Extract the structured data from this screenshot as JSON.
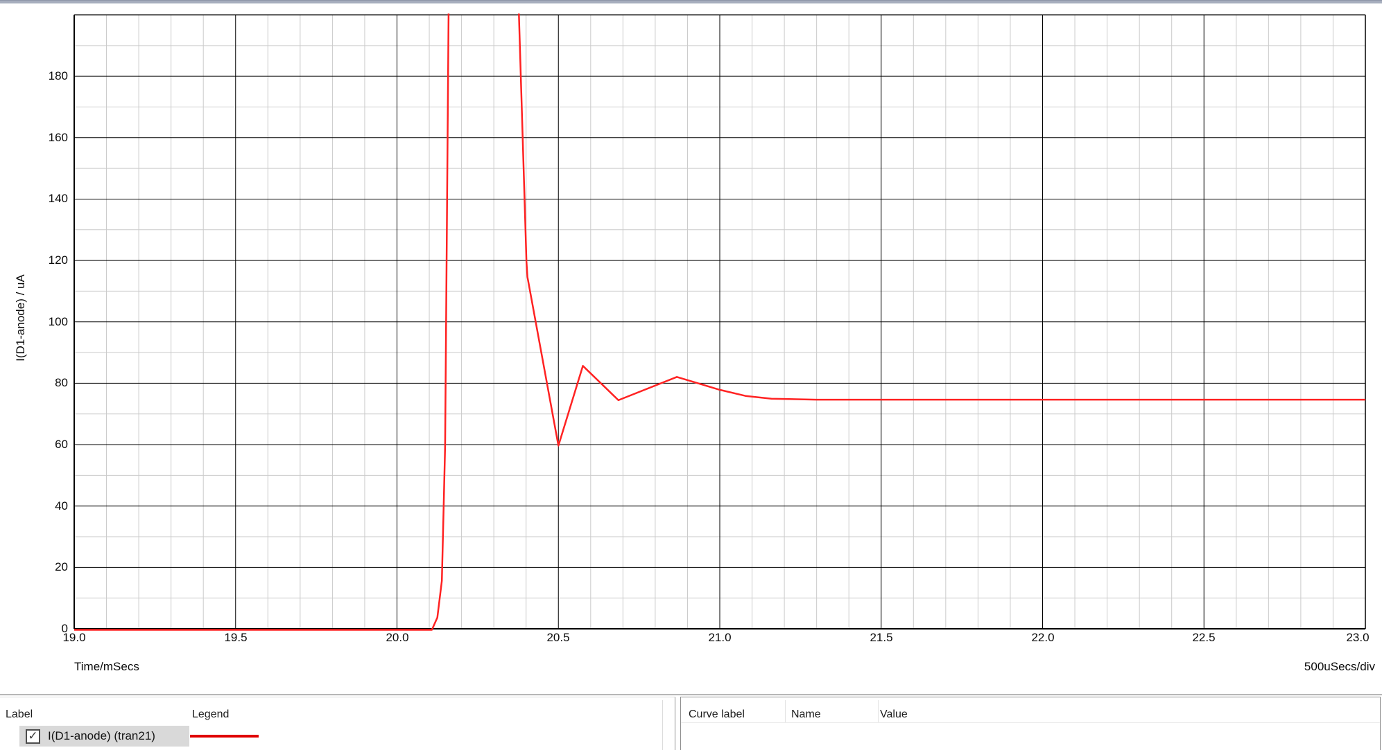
{
  "chart_data": {
    "type": "line",
    "xlabel": "Time/mSecs",
    "x_scale_note": "500uSecs/div",
    "ylabel": "I(D1-anode) / uA",
    "xlim": [
      19.0,
      23.0
    ],
    "ylim": [
      0,
      200
    ],
    "x_major_step": 0.5,
    "x_minor_step": 0.1,
    "y_major_step": 20,
    "y_minor_step": 10,
    "grid": true,
    "x_tick_labels": [
      "19.0",
      "19.5",
      "20.0",
      "20.5",
      "21.0",
      "21.5",
      "22.0",
      "22.5",
      "23.0"
    ],
    "y_tick_labels": [
      "0",
      "20",
      "40",
      "60",
      "80",
      "100",
      "120",
      "140",
      "160",
      "180"
    ],
    "series": [
      {
        "name": "I(D1-anode) (tran21)",
        "color": "#ff2222",
        "points": [
          [
            19.0,
            0
          ],
          [
            20.108,
            0
          ],
          [
            20.125,
            4
          ],
          [
            20.139,
            16
          ],
          [
            20.1445,
            40
          ],
          [
            20.149,
            60
          ],
          [
            20.16,
            203
          ],
          [
            20.377,
            203
          ],
          [
            20.401,
            120
          ],
          [
            20.404,
            115
          ],
          [
            20.5,
            60
          ],
          [
            20.576,
            86
          ],
          [
            20.686,
            74.8
          ],
          [
            20.867,
            82.4
          ],
          [
            21.0,
            78.2
          ],
          [
            21.08,
            76.2
          ],
          [
            21.16,
            75.3
          ],
          [
            21.3,
            75
          ],
          [
            23.0,
            75
          ]
        ]
      }
    ]
  },
  "bottom_panel": {
    "left": {
      "label_header": "Label",
      "legend_header": "Legend",
      "rows": [
        {
          "checked": true,
          "label": "I(D1-anode) (tran21)",
          "legend_color": "#e00000",
          "checkmark": "✓"
        }
      ]
    },
    "right": {
      "headers": [
        "Curve label",
        "Name",
        "Value"
      ]
    }
  },
  "colors": {
    "curve": "#ff2222",
    "legend_swatch": "#e00000",
    "grid_minor": "#cacaca",
    "grid_major": "#000000",
    "topbar": "#a6adbd",
    "topbar_edge": "#8e96a9",
    "row_highlight": "#d9d9d9"
  }
}
